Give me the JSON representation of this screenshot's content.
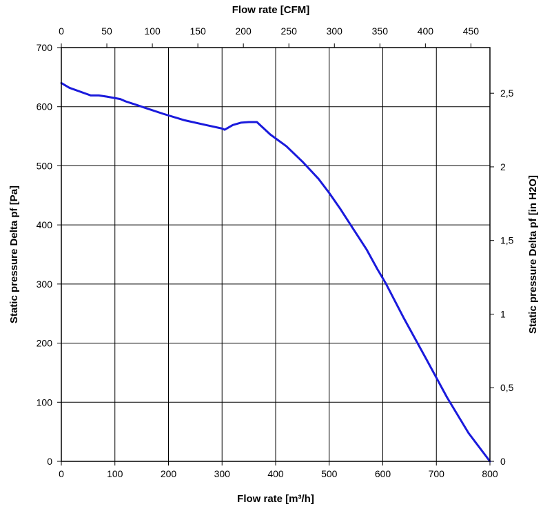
{
  "chart_data": {
    "type": "line",
    "title": "",
    "xlabel": "Flow rate [m³/h]",
    "ylabel": "Static pressure Delta pf [Pa]",
    "x2label": "Flow rate [CFM]",
    "y2label": "Static pressure Delta pf [in H2O]",
    "xlim": [
      0,
      800
    ],
    "ylim": [
      0,
      700
    ],
    "x2lim": [
      0,
      470.9
    ],
    "y2lim": [
      0,
      2.81
    ],
    "grid": true,
    "xticks": [
      0,
      100,
      200,
      300,
      400,
      500,
      600,
      700,
      800
    ],
    "xtick_labels": [
      "0",
      "100",
      "200",
      "300",
      "400",
      "500",
      "600",
      "700",
      "800"
    ],
    "yticks": [
      0,
      100,
      200,
      300,
      400,
      500,
      600,
      700
    ],
    "ytick_labels": [
      "0",
      "100",
      "200",
      "300",
      "400",
      "500",
      "600",
      "700"
    ],
    "x2ticks": [
      0,
      50,
      100,
      150,
      200,
      250,
      300,
      350,
      400,
      450
    ],
    "x2tick_labels": [
      "0",
      "50",
      "100",
      "150",
      "200",
      "250",
      "300",
      "350",
      "400",
      "450"
    ],
    "y2ticks": [
      0,
      0.5,
      1,
      1.5,
      2,
      2.5
    ],
    "y2tick_labels": [
      "0",
      "0,5",
      "1",
      "1,5",
      "2",
      "2,5"
    ],
    "series": [
      {
        "color": "#1a1adc",
        "x": [
          0,
          15,
          55,
          70,
          85,
          110,
          120,
          140,
          160,
          190,
          230,
          270,
          300,
          305,
          320,
          335,
          350,
          365,
          390,
          420,
          450,
          480,
          500,
          520,
          545,
          570,
          590,
          605,
          640,
          680,
          720,
          760,
          800
        ],
        "y": [
          640,
          632,
          619,
          619,
          617,
          613,
          609,
          603,
          597,
          588,
          577,
          569,
          563,
          561,
          569,
          573,
          574,
          574,
          553,
          533,
          507,
          478,
          454,
          428,
          393,
          358,
          325,
          302,
          241,
          175,
          108,
          48,
          0
        ]
      }
    ]
  }
}
